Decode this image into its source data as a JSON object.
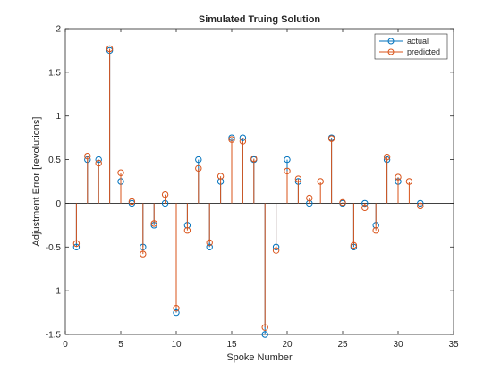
{
  "chart_data": {
    "type": "stem",
    "title": "Simulated Truing Solution",
    "xlabel": "Spoke Number",
    "ylabel": "Adjustment Error [revolutions]",
    "xlim": [
      0,
      35
    ],
    "ylim": [
      -1.5,
      2
    ],
    "xticks": [
      0,
      5,
      10,
      15,
      20,
      25,
      30,
      35
    ],
    "yticks": [
      -1.5,
      -1,
      -0.5,
      0,
      0.5,
      1,
      1.5,
      2
    ],
    "x": [
      1,
      2,
      3,
      4,
      5,
      6,
      7,
      8,
      9,
      10,
      11,
      12,
      13,
      14,
      15,
      16,
      17,
      18,
      19,
      20,
      21,
      22,
      23,
      24,
      25,
      26,
      27,
      28,
      29,
      30,
      31,
      32
    ],
    "series": [
      {
        "name": "actual",
        "color": "#0072BD",
        "values": [
          -0.5,
          0.5,
          0.5,
          1.75,
          0.25,
          0,
          -0.5,
          -0.25,
          0,
          -1.25,
          -0.25,
          0.5,
          -0.5,
          0.25,
          0.75,
          0.75,
          0.5,
          -1.5,
          -0.5,
          0.5,
          0.25,
          0,
          null,
          0.75,
          0,
          -0.5,
          0,
          -0.25,
          0.5,
          0.25,
          null,
          0
        ]
      },
      {
        "name": "predicted",
        "color": "#D95319",
        "values": [
          -0.46,
          0.54,
          0.46,
          1.77,
          0.35,
          0.02,
          -0.58,
          -0.23,
          0.1,
          -1.2,
          -0.31,
          0.4,
          -0.45,
          0.31,
          0.73,
          0.71,
          0.51,
          -1.42,
          -0.54,
          0.37,
          0.28,
          0.06,
          0.25,
          0.74,
          0.01,
          -0.48,
          -0.05,
          -0.31,
          0.53,
          0.3,
          0.25,
          -0.03
        ]
      }
    ],
    "legend_position": "top-right",
    "grid": false
  }
}
